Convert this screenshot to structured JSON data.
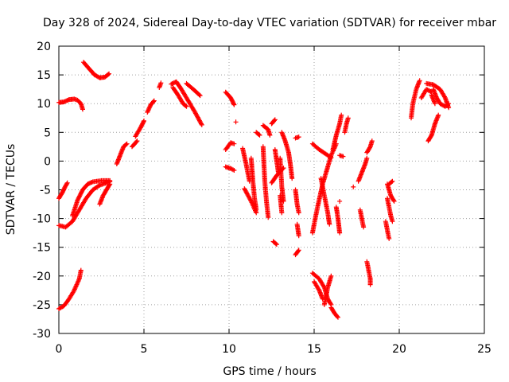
{
  "chart_data": {
    "type": "scatter",
    "title": "Day 328 of 2024, Sidereal Day-to-day VTEC variation (SDTVAR) for receiver mbar",
    "xlabel": "GPS time / hours",
    "ylabel": "SDTVAR / TECUs",
    "xlim": [
      0,
      25
    ],
    "ylim": [
      -30,
      20
    ],
    "x_ticks": [
      "0",
      "5",
      "10",
      "15",
      "20",
      "25"
    ],
    "y_ticks": [
      "20",
      "15",
      "10",
      "5",
      "0",
      "-5",
      "-10",
      "-15",
      "-20",
      "-25",
      "-30"
    ],
    "grid": true,
    "marker": "+",
    "series": [
      {
        "color": "#ff0000",
        "tracks": [
          [
            [
              0.0,
              10.2
            ],
            [
              0.3,
              10.3
            ],
            [
              0.6,
              10.7
            ],
            [
              0.9,
              10.8
            ],
            [
              1.1,
              10.6
            ],
            [
              1.3,
              10.0
            ],
            [
              1.4,
              9.0
            ]
          ],
          [
            [
              1.45,
              17.2
            ],
            [
              1.8,
              16.0
            ],
            [
              2.1,
              15.0
            ],
            [
              2.4,
              14.5
            ],
            [
              2.7,
              14.6
            ],
            [
              2.95,
              15.2
            ]
          ],
          [
            [
              0.0,
              -6.5
            ],
            [
              0.2,
              -5.5
            ],
            [
              0.4,
              -4.3
            ],
            [
              0.5,
              -3.8
            ]
          ],
          [
            [
              0.0,
              -11.2
            ],
            [
              0.4,
              -11.5
            ],
            [
              0.8,
              -10.5
            ],
            [
              1.2,
              -8.5
            ],
            [
              1.6,
              -6.5
            ],
            [
              2.0,
              -5.0
            ],
            [
              2.4,
              -4.2
            ],
            [
              2.8,
              -3.8
            ],
            [
              3.0,
              -3.6
            ]
          ],
          [
            [
              0.8,
              -9.5
            ],
            [
              1.1,
              -6.8
            ],
            [
              1.4,
              -5.0
            ],
            [
              1.7,
              -4.0
            ],
            [
              2.0,
              -3.6
            ],
            [
              2.5,
              -3.4
            ],
            [
              3.0,
              -3.4
            ]
          ],
          [
            [
              2.4,
              -7.5
            ],
            [
              2.6,
              -6.0
            ],
            [
              2.8,
              -5.0
            ],
            [
              3.0,
              -4.0
            ]
          ],
          [
            [
              0.0,
              -25.7
            ],
            [
              0.3,
              -25.2
            ],
            [
              0.6,
              -24.0
            ],
            [
              0.9,
              -22.5
            ],
            [
              1.2,
              -20.5
            ],
            [
              1.3,
              -19.0
            ]
          ],
          [
            [
              3.4,
              -0.5
            ],
            [
              3.6,
              1.0
            ],
            [
              3.8,
              2.5
            ],
            [
              4.0,
              3.0
            ]
          ],
          [
            [
              4.3,
              2.5
            ],
            [
              4.6,
              3.5
            ]
          ],
          [
            [
              4.5,
              4.3
            ],
            [
              4.8,
              5.8
            ],
            [
              5.0,
              7.0
            ]
          ],
          [
            [
              5.2,
              8.5
            ],
            [
              5.4,
              9.8
            ],
            [
              5.6,
              10.5
            ]
          ],
          [
            [
              5.9,
              12.8
            ],
            [
              6.0,
              13.6
            ]
          ],
          [
            [
              6.6,
              13.4
            ],
            [
              6.9,
              13.8
            ],
            [
              7.2,
              12.5
            ],
            [
              7.6,
              10.5
            ],
            [
              8.0,
              8.5
            ],
            [
              8.4,
              6.3
            ]
          ],
          [
            [
              6.7,
              12.8
            ],
            [
              7.0,
              11.5
            ],
            [
              7.3,
              10.0
            ],
            [
              7.5,
              9.5
            ]
          ],
          [
            [
              7.5,
              13.5
            ],
            [
              7.9,
              12.5
            ],
            [
              8.3,
              11.4
            ]
          ],
          [
            [
              9.8,
              12.0
            ],
            [
              10.1,
              11.0
            ],
            [
              10.3,
              9.8
            ]
          ],
          [
            [
              9.8,
              2.0
            ],
            [
              10.1,
              3.2
            ],
            [
              10.3,
              3.0
            ]
          ],
          [
            [
              9.8,
              -1.0
            ],
            [
              10.1,
              -1.3
            ],
            [
              10.3,
              -1.6
            ]
          ],
          [
            [
              10.4,
              6.8
            ]
          ],
          [
            [
              10.8,
              2.2
            ],
            [
              11.0,
              -0.5
            ],
            [
              11.2,
              -3.5
            ]
          ],
          [
            [
              10.9,
              -4.8
            ],
            [
              11.3,
              -7.0
            ],
            [
              11.6,
              -9.0
            ]
          ],
          [
            [
              11.3,
              0.5
            ],
            [
              11.4,
              -3.5
            ],
            [
              11.5,
              -6.5
            ],
            [
              11.6,
              -8.5
            ]
          ],
          [
            [
              11.6,
              5.0
            ],
            [
              11.8,
              4.5
            ]
          ],
          [
            [
              12.0,
              6.2
            ],
            [
              12.3,
              5.5
            ],
            [
              12.4,
              4.5
            ]
          ],
          [
            [
              12.0,
              2.5
            ],
            [
              12.1,
              -3.5
            ],
            [
              12.2,
              -7.0
            ],
            [
              12.3,
              -9.8
            ]
          ],
          [
            [
              12.5,
              -3.8
            ],
            [
              12.8,
              -2.5
            ],
            [
              13.2,
              -1.2
            ]
          ],
          [
            [
              12.5,
              6.5
            ],
            [
              12.7,
              7.2
            ]
          ],
          [
            [
              12.7,
              2.0
            ],
            [
              12.8,
              0.0
            ],
            [
              12.9,
              -2.0
            ]
          ],
          [
            [
              13.0,
              0.5
            ],
            [
              13.1,
              -4.5
            ],
            [
              13.2,
              -7.0
            ]
          ],
          [
            [
              13.0,
              -6.0
            ],
            [
              13.1,
              -9.0
            ]
          ],
          [
            [
              12.6,
              -14.0
            ],
            [
              12.8,
              -14.5
            ]
          ],
          [
            [
              13.1,
              5.0
            ],
            [
              13.3,
              3.5
            ],
            [
              13.5,
              1.5
            ],
            [
              13.6,
              -0.5
            ],
            [
              13.7,
              -3.0
            ]
          ],
          [
            [
              13.9,
              -5.0
            ],
            [
              14.0,
              -7.5
            ],
            [
              14.1,
              -9.0
            ]
          ],
          [
            [
              13.9,
              4.0
            ],
            [
              14.1,
              4.2
            ]
          ],
          [
            [
              14.0,
              -11.0
            ],
            [
              14.1,
              -13.0
            ]
          ],
          [
            [
              13.9,
              -16.3
            ],
            [
              14.1,
              -15.5
            ]
          ],
          [
            [
              14.9,
              -12.5
            ],
            [
              15.2,
              -8.0
            ],
            [
              15.5,
              -4.0
            ],
            [
              15.8,
              -1.0
            ],
            [
              16.0,
              1.0
            ],
            [
              16.3,
              3.0
            ]
          ],
          [
            [
              14.9,
              3.0
            ],
            [
              15.3,
              2.0
            ],
            [
              15.7,
              1.2
            ],
            [
              16.0,
              0.6
            ]
          ],
          [
            [
              15.4,
              -3.0
            ],
            [
              15.6,
              -6.0
            ],
            [
              15.8,
              -9.0
            ],
            [
              15.9,
              -11.0
            ]
          ],
          [
            [
              16.1,
              2.0
            ],
            [
              16.3,
              4.5
            ],
            [
              16.5,
              6.5
            ],
            [
              16.6,
              8.0
            ]
          ],
          [
            [
              16.8,
              5.0
            ],
            [
              16.9,
              6.5
            ],
            [
              17.0,
              7.5
            ]
          ],
          [
            [
              16.5,
              1.0
            ],
            [
              16.7,
              0.8
            ]
          ],
          [
            [
              16.3,
              -8.0
            ],
            [
              16.4,
              -10.0
            ],
            [
              16.5,
              -12.5
            ]
          ],
          [
            [
              16.5,
              -7.0
            ]
          ],
          [
            [
              14.9,
              -19.5
            ],
            [
              15.3,
              -20.5
            ],
            [
              15.6,
              -22.0
            ],
            [
              15.8,
              -24.0
            ],
            [
              16.0,
              -25.0
            ]
          ],
          [
            [
              15.0,
              -21.0
            ],
            [
              15.3,
              -22.5
            ],
            [
              15.5,
              -24.0
            ]
          ],
          [
            [
              15.6,
              -25.0
            ],
            [
              15.8,
              -22.0
            ],
            [
              16.0,
              -20.0
            ]
          ],
          [
            [
              16.0,
              -25.5
            ],
            [
              16.2,
              -26.5
            ],
            [
              16.4,
              -27.2
            ]
          ],
          [
            [
              17.3,
              -4.5
            ]
          ],
          [
            [
              17.6,
              -3.5
            ],
            [
              17.8,
              -2.0
            ],
            [
              18.0,
              -0.5
            ],
            [
              18.1,
              0.5
            ]
          ],
          [
            [
              18.1,
              1.5
            ],
            [
              18.3,
              2.5
            ],
            [
              18.4,
              3.5
            ]
          ],
          [
            [
              17.7,
              -8.5
            ],
            [
              17.8,
              -10.0
            ],
            [
              17.9,
              -11.5
            ]
          ],
          [
            [
              18.1,
              -17.5
            ],
            [
              18.2,
              -19.0
            ],
            [
              18.3,
              -20.5
            ],
            [
              18.3,
              -21.5
            ]
          ],
          [
            [
              19.3,
              -4.0
            ],
            [
              19.5,
              -6.0
            ],
            [
              19.7,
              -7.0
            ]
          ],
          [
            [
              19.3,
              -6.5
            ],
            [
              19.5,
              -9.5
            ],
            [
              19.6,
              -10.5
            ]
          ],
          [
            [
              19.2,
              -10.5
            ],
            [
              19.3,
              -12.0
            ],
            [
              19.4,
              -13.5
            ]
          ],
          [
            [
              19.4,
              -4.0
            ],
            [
              19.6,
              -3.5
            ]
          ],
          [
            [
              20.7,
              7.5
            ],
            [
              20.8,
              10.0
            ],
            [
              21.0,
              12.5
            ],
            [
              21.2,
              14.0
            ]
          ],
          [
            [
              21.3,
              11.0
            ],
            [
              21.6,
              12.5
            ],
            [
              21.9,
              12.0
            ]
          ],
          [
            [
              21.7,
              3.5
            ],
            [
              21.9,
              4.5
            ],
            [
              22.1,
              6.5
            ],
            [
              22.3,
              8.0
            ]
          ],
          [
            [
              21.6,
              13.5
            ],
            [
              22.0,
              13.3
            ],
            [
              22.4,
              12.5
            ],
            [
              22.7,
              11.0
            ],
            [
              22.9,
              9.3
            ]
          ],
          [
            [
              22.0,
              12.5
            ],
            [
              22.2,
              11.0
            ],
            [
              22.4,
              10.0
            ],
            [
              22.7,
              9.5
            ],
            [
              22.9,
              10.0
            ]
          ],
          [
            [
              21.9,
              11.5
            ],
            [
              22.1,
              10.0
            ]
          ]
        ]
      }
    ]
  }
}
